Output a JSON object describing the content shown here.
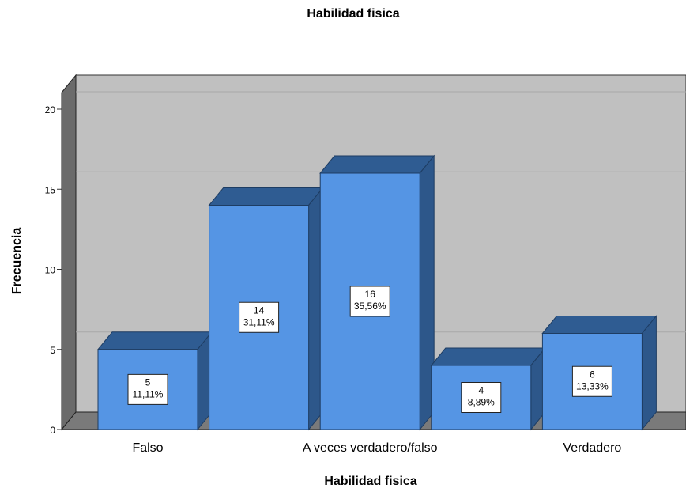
{
  "chart_data": {
    "type": "bar3d",
    "title": "Habilidad fisica",
    "xlabel": "Habilidad fisica",
    "ylabel": "Frecuencia",
    "categories": [
      "Falso",
      null,
      "A veces verdadero/falso",
      null,
      "Verdadero"
    ],
    "values": [
      5,
      14,
      16,
      4,
      6
    ],
    "percent_values": [
      11.11,
      31.11,
      35.56,
      8.89,
      13.33
    ],
    "percent_labels": [
      "11,11%",
      "31,11%",
      "35,56%",
      "8,89%",
      "13,33%"
    ],
    "color": "#5595e4",
    "ylim": [
      0,
      20
    ],
    "yticks": [
      0,
      5,
      10,
      15,
      20
    ],
    "grid": true
  }
}
